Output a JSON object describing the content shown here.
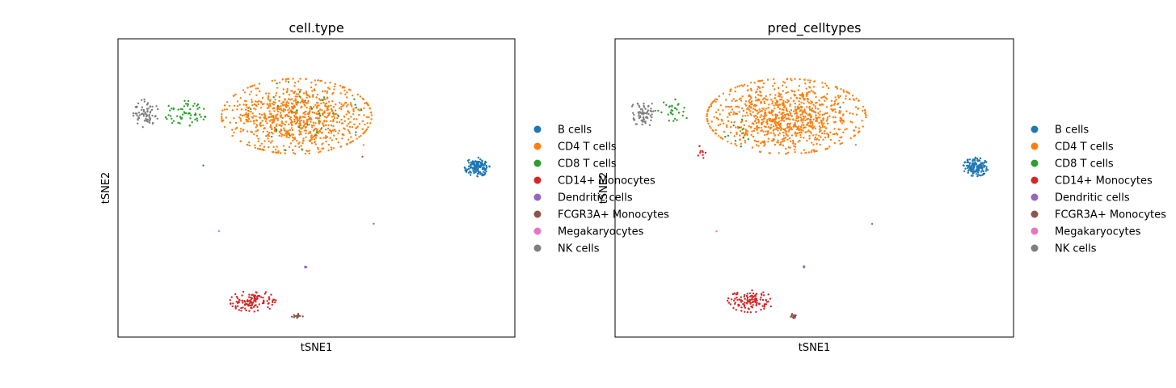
{
  "chart_data": [
    {
      "type": "scatter",
      "title": "cell.type",
      "xlabel": "tSNE1",
      "ylabel": "tSNE2",
      "xlim": [
        0,
        100
      ],
      "ylim": [
        0,
        100
      ],
      "grid": false,
      "ticks": false,
      "legend_position": "right-outside",
      "legend": [
        "B cells",
        "CD4 T cells",
        "CD8 T cells",
        "CD14+ Monocytes",
        "Dendritic cells",
        "FCGR3A+ Monocytes",
        "Megakaryocytes",
        "NK cells"
      ],
      "colors": {
        "B cells": "#1f77b4",
        "CD4 T cells": "#ff7f0e",
        "CD8 T cells": "#2ca02c",
        "CD14+ Monocytes": "#d62728",
        "Dendritic cells": "#9467bd",
        "FCGR3A+ Monocytes": "#8c564b",
        "Megakaryocytes": "#e377c2",
        "NK cells": "#7f7f7f"
      },
      "clusters": [
        {
          "label": "CD4 T cells",
          "cx": 45,
          "cy": 74,
          "sx": 18,
          "sy": 12,
          "n": 900,
          "seed": 11
        },
        {
          "label": "CD8 T cells",
          "cx": 17,
          "cy": 75,
          "sx": 5,
          "sy": 4,
          "n": 60,
          "seed": 12
        },
        {
          "label": "CD8 T cells",
          "cx": 45,
          "cy": 74,
          "sx": 16,
          "sy": 11,
          "n": 35,
          "seed": 13
        },
        {
          "label": "NK cells",
          "cx": 7,
          "cy": 75,
          "sx": 3,
          "sy": 4.5,
          "n": 70,
          "seed": 14
        },
        {
          "label": "B cells",
          "cx": 90.5,
          "cy": 57,
          "sx": 3,
          "sy": 3,
          "n": 140,
          "seed": 15
        },
        {
          "label": "CD14+ Monocytes",
          "cx": 34,
          "cy": 12,
          "sx": 5.5,
          "sy": 3.5,
          "n": 120,
          "seed": 16
        },
        {
          "label": "FCGR3A+ Monocytes",
          "cx": 45,
          "cy": 7,
          "sx": 1.5,
          "sy": 0.8,
          "n": 15,
          "seed": 17
        },
        {
          "label": "Dendritic cells",
          "cx": 47.5,
          "cy": 23.5,
          "sx": 0.4,
          "sy": 0.3,
          "n": 5,
          "seed": 18
        },
        {
          "label": "Dendritic cells",
          "cx": 64.5,
          "cy": 38,
          "sx": 0.1,
          "sy": 0.1,
          "n": 1,
          "seed": 19
        },
        {
          "label": "Megakaryocytes",
          "cx": 25.5,
          "cy": 35.5,
          "sx": 0.1,
          "sy": 0.1,
          "n": 1,
          "seed": 20
        },
        {
          "label": "Megakaryocytes",
          "cx": 62,
          "cy": 64.5,
          "sx": 0.2,
          "sy": 0.2,
          "n": 1,
          "seed": 21
        },
        {
          "label": "B cells",
          "cx": 21.5,
          "cy": 57.5,
          "sx": 0.1,
          "sy": 0.1,
          "n": 1,
          "seed": 22
        },
        {
          "label": "FCGR3A+ Monocytes",
          "cx": 61.5,
          "cy": 60.5,
          "sx": 0.1,
          "sy": 0.1,
          "n": 1,
          "seed": 23
        }
      ]
    },
    {
      "type": "scatter",
      "title": "pred_celltypes",
      "xlabel": "tSNE1",
      "ylabel": "tSNE2",
      "xlim": [
        0,
        100
      ],
      "ylim": [
        0,
        100
      ],
      "grid": false,
      "ticks": false,
      "legend_position": "right-outside",
      "legend": [
        "B cells",
        "CD4 T cells",
        "CD8 T cells",
        "CD14+ Monocytes",
        "Dendritic cells",
        "FCGR3A+ Monocytes",
        "Megakaryocytes",
        "NK cells"
      ],
      "colors": {
        "B cells": "#1f77b4",
        "CD4 T cells": "#ff7f0e",
        "CD8 T cells": "#2ca02c",
        "CD14+ Monocytes": "#d62728",
        "Dendritic cells": "#9467bd",
        "FCGR3A+ Monocytes": "#8c564b",
        "Megakaryocytes": "#e377c2",
        "NK cells": "#7f7f7f"
      },
      "clusters": [
        {
          "label": "CD4 T cells",
          "cx": 43,
          "cy": 74,
          "sx": 19,
          "sy": 12,
          "n": 980,
          "seed": 31
        },
        {
          "label": "CD8 T cells",
          "cx": 15,
          "cy": 76,
          "sx": 4,
          "sy": 3.5,
          "n": 30,
          "seed": 32
        },
        {
          "label": "CD8 T cells",
          "cx": 30,
          "cy": 68,
          "sx": 6,
          "sy": 6,
          "n": 12,
          "seed": 33
        },
        {
          "label": "NK cells",
          "cx": 7,
          "cy": 75,
          "sx": 3,
          "sy": 4.5,
          "n": 70,
          "seed": 34
        },
        {
          "label": "B cells",
          "cx": 90.5,
          "cy": 57,
          "sx": 3,
          "sy": 3,
          "n": 140,
          "seed": 35
        },
        {
          "label": "CD14+ Monocytes",
          "cx": 34,
          "cy": 12,
          "sx": 5.5,
          "sy": 3.5,
          "n": 120,
          "seed": 36
        },
        {
          "label": "CD14+ Monocytes",
          "cx": 22,
          "cy": 62,
          "sx": 1.2,
          "sy": 2.5,
          "n": 10,
          "seed": 37
        },
        {
          "label": "FCGR3A+ Monocytes",
          "cx": 45,
          "cy": 7,
          "sx": 1.5,
          "sy": 0.8,
          "n": 15,
          "seed": 38
        },
        {
          "label": "Dendritic cells",
          "cx": 47.5,
          "cy": 23.5,
          "sx": 0.4,
          "sy": 0.3,
          "n": 5,
          "seed": 39
        },
        {
          "label": "Dendritic cells",
          "cx": 64.5,
          "cy": 38,
          "sx": 0.1,
          "sy": 0.1,
          "n": 1,
          "seed": 40
        },
        {
          "label": "Megakaryocytes",
          "cx": 25.5,
          "cy": 35.5,
          "sx": 0.1,
          "sy": 0.1,
          "n": 1,
          "seed": 41
        },
        {
          "label": "Megakaryocytes",
          "cx": 60.5,
          "cy": 64.5,
          "sx": 0.2,
          "sy": 0.2,
          "n": 1,
          "seed": 42
        },
        {
          "label": "B cells",
          "cx": 56.5,
          "cy": 77,
          "sx": 0.1,
          "sy": 0.1,
          "n": 1,
          "seed": 43
        }
      ]
    }
  ]
}
